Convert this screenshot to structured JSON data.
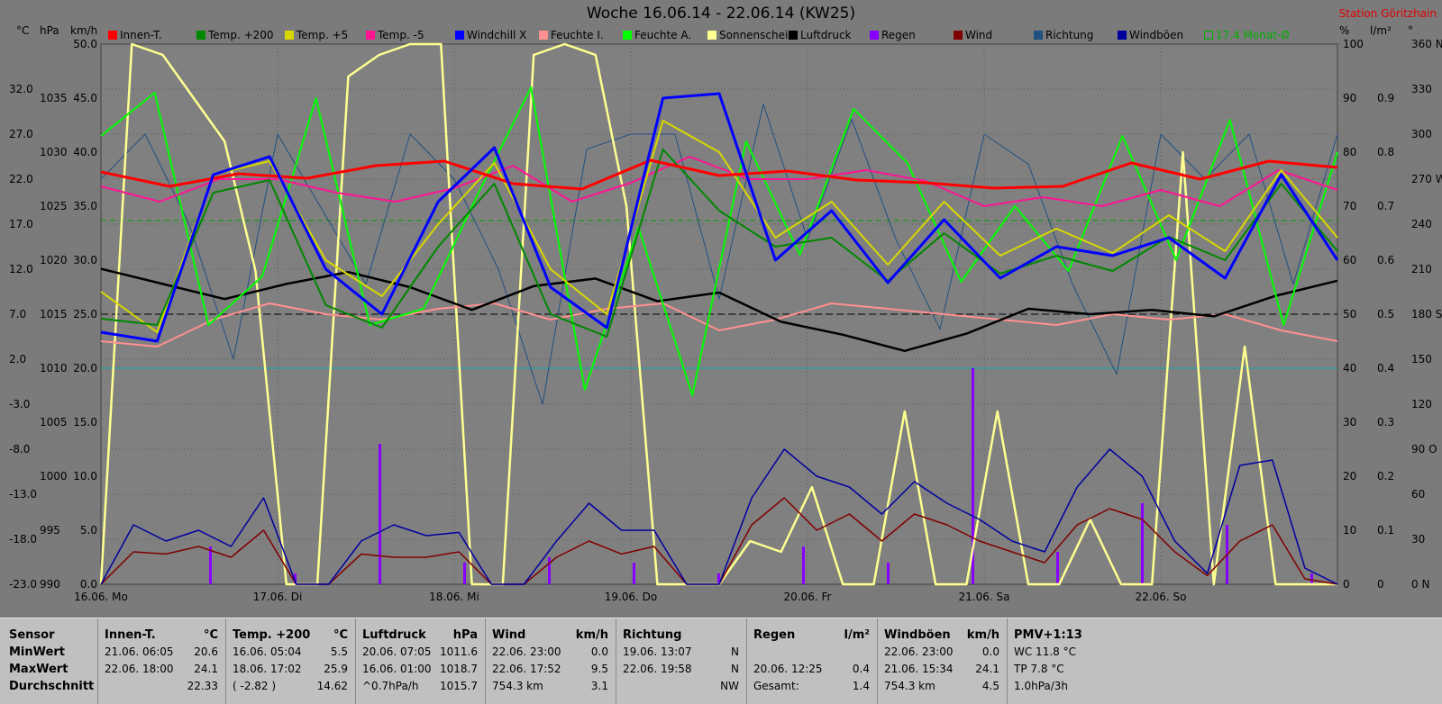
{
  "title": "Woche 16.06.14 - 22.06.14 (KW25)",
  "station": "Station Göritzhain",
  "units": {
    "temp": "°C",
    "press": "hPa",
    "wind": "km/h",
    "pct": "%",
    "rain": "l/m²",
    "dir": "°"
  },
  "legend": [
    {
      "label": "Innen-T.",
      "color": "#ff0000"
    },
    {
      "label": "Temp. +200",
      "color": "#008800"
    },
    {
      "label": "Temp. +5",
      "color": "#d8d800"
    },
    {
      "label": "Temp. -5",
      "color": "#ff1493"
    },
    {
      "label": "Windchill X",
      "color": "#0000ff"
    },
    {
      "label": "Feuchte I.",
      "color": "#ff9090"
    },
    {
      "label": "Feuchte A.",
      "color": "#00ff00"
    },
    {
      "label": "Sonnenschein",
      "color": "#ffff90"
    },
    {
      "label": "Luftdruck",
      "color": "#000000"
    },
    {
      "label": "Regen",
      "color": "#8800ff"
    },
    {
      "label": "Wind",
      "color": "#800000"
    },
    {
      "label": "Richtung",
      "color": "#205080"
    },
    {
      "label": "Windböen",
      "color": "#0000a0"
    },
    {
      "label": "17.4 Monat-Ø",
      "color": "#00b000",
      "hollow": true
    }
  ],
  "chart_data": {
    "type": "line",
    "title": "Woche 16.06.14 - 22.06.14 (KW25)",
    "x_labels": [
      "16.06. Mo",
      "17.06. Di",
      "18.06. Mi",
      "19.06. Do",
      "20.06. Fr",
      "21.06. Sa",
      "22.06. So"
    ],
    "axes": {
      "temp_c": {
        "ticks": [
          "32.0",
          "27.0",
          "22.0",
          "17.0",
          "12.0",
          "7.0",
          "2.0",
          "-3.0",
          "-8.0",
          "-13.0",
          "-18.0",
          "-23.0"
        ],
        "range": [
          -23,
          37
        ]
      },
      "pressure_hpa": {
        "ticks": [
          "1035",
          "1030",
          "1025",
          "1020",
          "1015",
          "1010",
          "1005",
          "1000",
          "995",
          "990"
        ],
        "range": [
          990,
          1040
        ]
      },
      "wind_kmh": {
        "ticks": [
          "50.0",
          "45.0",
          "40.0",
          "35.0",
          "30.0",
          "25.0",
          "20.0",
          "15.0",
          "10.0",
          "5.0",
          "0.0"
        ],
        "range": [
          0,
          50
        ]
      },
      "humidity_pct": {
        "ticks": [
          "100",
          "90",
          "80",
          "70",
          "60",
          "50",
          "40",
          "30",
          "20",
          "10",
          "0"
        ],
        "range": [
          0,
          100
        ]
      },
      "rain_lm2": {
        "ticks": [
          "0.9",
          "0.8",
          "0.7",
          "0.6",
          "0.5",
          "0.4",
          "0.3",
          "0.2",
          "0.1",
          "0"
        ],
        "range": [
          0,
          1.0
        ]
      },
      "direction_deg": {
        "ticks": [
          "360 N",
          "330",
          "300",
          "270 W",
          "240",
          "210",
          "180 S",
          "150",
          "120",
          "90 O",
          "60",
          "30",
          "0 N"
        ],
        "range": [
          0,
          360
        ]
      }
    },
    "grid": true,
    "reference_lines": {
      "monthly_avg_temp_c": 17.4,
      "humidity_pct": 40
    },
    "series": [
      {
        "name": "Innen-T.",
        "axis": "temp_c",
        "values": [
          22.8,
          21.2,
          22.6,
          22.1,
          23.5,
          24.0,
          21.5,
          20.9,
          24.1,
          22.4,
          22.9,
          21.9,
          21.6,
          21.0,
          21.2,
          23.8,
          22.0,
          24.0,
          23.3
        ]
      },
      {
        "name": "Temp. +200",
        "axis": "temp_c",
        "values": [
          6.5,
          5.8,
          20.5,
          21.9,
          8.0,
          5.5,
          14.5,
          21.5,
          7.0,
          4.5,
          25.3,
          18.5,
          14.5,
          15.5,
          10.7,
          16.0,
          11.5,
          13.5,
          11.8,
          15.6,
          13.0,
          21.5,
          14.0
        ]
      },
      {
        "name": "Temp. +5",
        "axis": "temp_c",
        "values": [
          9.5,
          5.0,
          22.5,
          24.0,
          13.0,
          9.0,
          17.0,
          23.8,
          12.0,
          7.0,
          28.5,
          25.0,
          15.5,
          19.5,
          12.5,
          19.5,
          13.5,
          16.5,
          13.8,
          18.0,
          14.0,
          23.0,
          15.5
        ]
      },
      {
        "name": "Temp. -5",
        "axis": "temp_c",
        "values": [
          21.2,
          19.5,
          22.0,
          22.0,
          20.5,
          19.5,
          21.0,
          23.5,
          19.5,
          21.6,
          24.5,
          22.0,
          22.0,
          23.0,
          21.8,
          19.0,
          20.0,
          19.0,
          20.8,
          19.0,
          23.0,
          20.8
        ]
      },
      {
        "name": "Windchill X",
        "axis": "temp_c",
        "values": [
          5.0,
          4.0,
          22.5,
          24.5,
          12.0,
          7.0,
          19.5,
          25.5,
          10.0,
          5.5,
          31.0,
          31.5,
          13.0,
          18.5,
          10.5,
          17.5,
          11.0,
          14.5,
          13.5,
          15.5,
          11.0,
          22.5,
          13.0
        ]
      },
      {
        "name": "Feuchte I.",
        "axis": "humidity_pct",
        "values": [
          45,
          44,
          49,
          52,
          50,
          49,
          51,
          52,
          49,
          51,
          52,
          47,
          49,
          52,
          51,
          50,
          49,
          48,
          50,
          49,
          50,
          47,
          45
        ]
      },
      {
        "name": "Feuchte A.",
        "axis": "humidity_pct",
        "values": [
          83,
          91,
          48,
          57,
          90,
          48,
          51,
          72,
          92,
          36,
          66,
          35,
          82,
          61,
          88,
          78,
          56,
          70,
          58,
          83,
          60,
          86,
          48,
          80
        ]
      },
      {
        "name": "Luftdruck",
        "axis": "pressure_hpa",
        "values": [
          1019.2,
          1017.8,
          1016.4,
          1017.8,
          1018.9,
          1017.5,
          1015.4,
          1017.6,
          1018.3,
          1016.2,
          1017.0,
          1014.3,
          1013.1,
          1011.6,
          1013.2,
          1015.5,
          1015.0,
          1015.4,
          1014.8,
          1016.7,
          1018.1
        ]
      },
      {
        "name": "Sonnenschein",
        "axis": "wind_kmh",
        "values": [
          0,
          50,
          49,
          45,
          41,
          29,
          0,
          0,
          47,
          49,
          50,
          50,
          0,
          0,
          49,
          50,
          49,
          35,
          0,
          0,
          0,
          4,
          3,
          9,
          0,
          0,
          16,
          0,
          0,
          16,
          0,
          0,
          6,
          0,
          0,
          40,
          0,
          22,
          0,
          0,
          0
        ]
      },
      {
        "name": "Wind",
        "axis": "wind_kmh",
        "values": [
          0,
          3.0,
          2.8,
          3.5,
          2.5,
          5.0,
          0,
          0,
          2.8,
          2.5,
          2.5,
          3.0,
          0,
          0,
          2.5,
          4.0,
          2.8,
          3.5,
          0,
          0,
          5.5,
          8.0,
          5.0,
          6.5,
          4.0,
          6.5,
          5.5,
          4.0,
          3.0,
          2.0,
          5.5,
          7.0,
          6.0,
          3.0,
          0.8,
          4.0,
          5.5,
          0.5,
          0
        ]
      },
      {
        "name": "Windböen",
        "axis": "wind_kmh",
        "values": [
          0,
          5.5,
          4.0,
          5.0,
          3.5,
          8.0,
          0,
          0,
          4.0,
          5.5,
          4.5,
          4.8,
          0,
          0,
          4.0,
          7.5,
          5.0,
          5.0,
          0,
          0,
          8.0,
          12.5,
          10.0,
          9.0,
          6.5,
          9.5,
          7.5,
          6.0,
          4.0,
          3.0,
          9.0,
          12.5,
          10.0,
          4.0,
          1.0,
          11.0,
          11.5,
          1.5,
          0
        ]
      },
      {
        "name": "Richtung",
        "axis": "direction_deg",
        "values": [
          270,
          300,
          240,
          150,
          300,
          250,
          200,
          300,
          270,
          210,
          120,
          290,
          300,
          300,
          190,
          320,
          230,
          310,
          230,
          170,
          300,
          280,
          200,
          140,
          300,
          270,
          300,
          200,
          300
        ]
      },
      {
        "name": "Regen",
        "axis": "rain_lm2",
        "type": "bar",
        "values": [
          0.07,
          0.02,
          0.26,
          0.04,
          0.05,
          0.04,
          0.02,
          0.07,
          0.04,
          0.4,
          0.06,
          0.15,
          0.11,
          0.02
        ]
      }
    ]
  },
  "stats": {
    "row_labels": [
      "Sensor",
      "MinWert",
      "MaxWert",
      "Durchschnitt"
    ],
    "columns": [
      {
        "name": "Innen-T.",
        "unit": "°C",
        "rows": [
          [
            "21.06.  06:05",
            "20.6"
          ],
          [
            "22.06.  18:00",
            "24.1"
          ],
          [
            "",
            "22.33"
          ]
        ]
      },
      {
        "name": "Temp. +200",
        "unit": "°C",
        "rows": [
          [
            "16.06.  05:04",
            "5.5"
          ],
          [
            "18.06.  17:02",
            "25.9"
          ],
          [
            "( -2.82 )",
            "14.62"
          ]
        ]
      },
      {
        "name": "Luftdruck",
        "unit": "hPa",
        "rows": [
          [
            "20.06.  07:05",
            "1011.6"
          ],
          [
            "16.06.  01:00",
            "1018.7"
          ],
          [
            "^0.7hPa/h",
            "1015.7"
          ]
        ]
      },
      {
        "name": "Wind",
        "unit": "km/h",
        "rows": [
          [
            "22.06.  23:00",
            "0.0"
          ],
          [
            "22.06.  17:52",
            "9.5"
          ],
          [
            "754.3 km",
            "3.1"
          ]
        ]
      },
      {
        "name": "Richtung",
        "unit": "",
        "rows": [
          [
            "19.06.  13:07",
            "N"
          ],
          [
            "22.06.  19:58",
            "N"
          ],
          [
            "",
            "NW"
          ]
        ]
      },
      {
        "name": "Regen",
        "unit": "l/m²",
        "rows": [
          [
            "",
            ""
          ],
          [
            "20.06.  12:25",
            "0.4"
          ],
          [
            "Gesamt:",
            "1.4"
          ]
        ]
      },
      {
        "name": "Windböen",
        "unit": "km/h",
        "rows": [
          [
            "22.06.  23:00",
            "0.0"
          ],
          [
            "21.06.  15:34",
            "24.1"
          ],
          [
            "754.3 km",
            "4.5"
          ]
        ]
      },
      {
        "name": "PMV+1:13",
        "unit": "",
        "rows": [
          [
            "WC 11.8 °C",
            ""
          ],
          [
            "TP 7.8 °C",
            ""
          ],
          [
            "1.0hPa/3h",
            ""
          ]
        ]
      }
    ]
  }
}
